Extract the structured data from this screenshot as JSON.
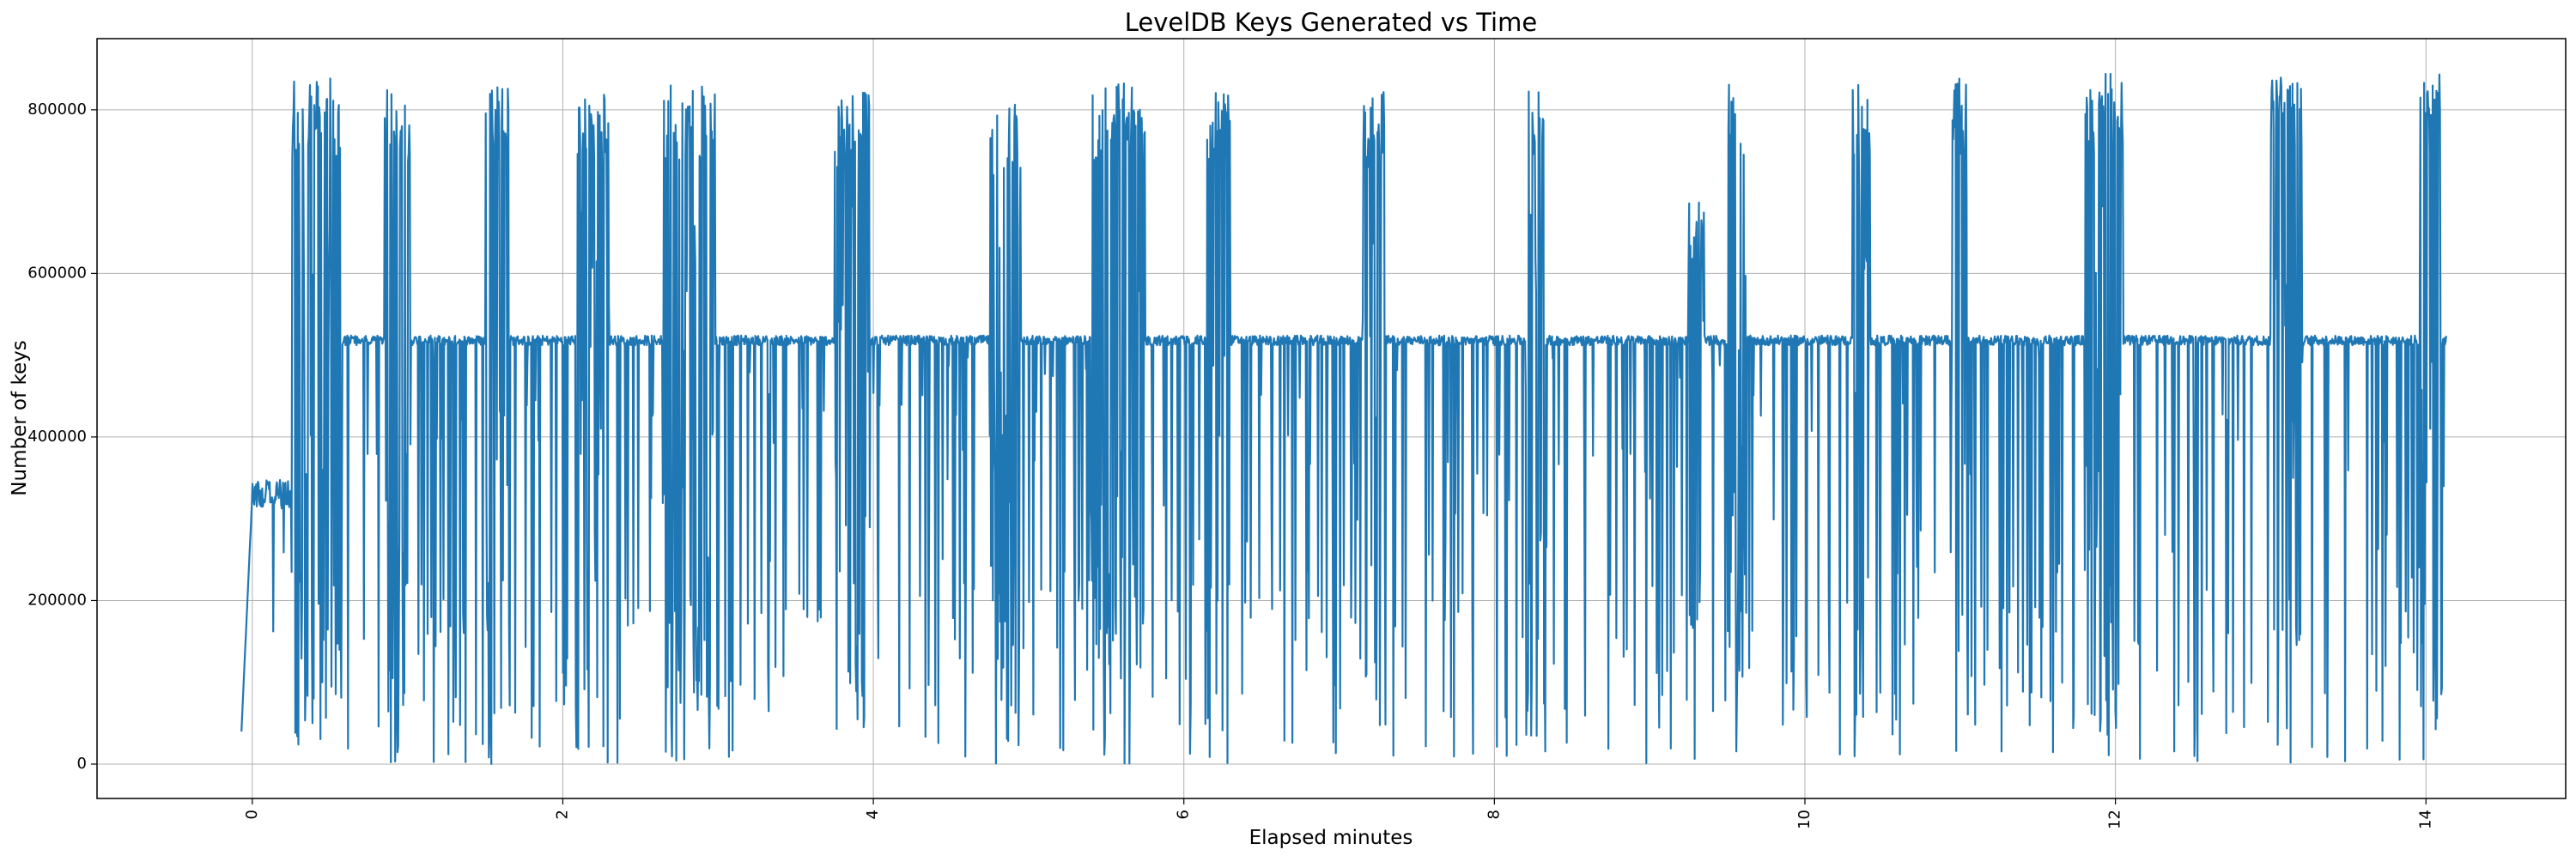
{
  "chart_data": {
    "type": "line",
    "title": "LevelDB Keys Generated vs Time",
    "xlabel": "Elapsed minutes",
    "ylabel": "Number of keys",
    "xlim": [
      -1.0,
      14.9
    ],
    "ylim": [
      -42000,
      887000
    ],
    "grid": true,
    "legend": "none",
    "x_ticks": [
      0,
      2,
      4,
      6,
      8,
      10,
      12,
      14
    ],
    "x_tick_labels": [
      "0",
      "2",
      "4",
      "6",
      "8",
      "10",
      "12",
      "14"
    ],
    "y_ticks": [
      0,
      200000,
      400000,
      600000,
      800000
    ],
    "y_tick_labels": [
      "0",
      "200000",
      "400000",
      "600000",
      "800000"
    ],
    "series": [
      {
        "name": "keys",
        "color": "#1f77b4",
        "x_start": -0.07,
        "x_end": 14.13,
        "baseline": 518000,
        "early_plateau": {
          "x_start": 0.0,
          "x_end": 0.38,
          "level": 330000
        },
        "bursts": [
          {
            "x_start": 0.25,
            "x_end": 0.58,
            "peak": 840000
          },
          {
            "x_start": 0.85,
            "x_end": 1.02,
            "peak": 825000
          },
          {
            "x_start": 1.5,
            "x_end": 1.65,
            "peak": 830000
          },
          {
            "x_start": 2.08,
            "x_end": 2.3,
            "peak": 825000
          },
          {
            "x_start": 2.65,
            "x_end": 2.98,
            "peak": 830000
          },
          {
            "x_start": 3.75,
            "x_end": 3.98,
            "peak": 830000
          },
          {
            "x_start": 4.75,
            "x_end": 4.95,
            "peak": 815000
          },
          {
            "x_start": 5.4,
            "x_end": 5.75,
            "peak": 838000
          },
          {
            "x_start": 6.15,
            "x_end": 6.3,
            "peak": 835000
          },
          {
            "x_start": 7.15,
            "x_end": 7.3,
            "peak": 828000
          },
          {
            "x_start": 8.2,
            "x_end": 8.32,
            "peak": 835000
          },
          {
            "x_start": 9.25,
            "x_end": 9.35,
            "peak": 700000
          },
          {
            "x_start": 9.5,
            "x_end": 9.62,
            "peak": 835000
          },
          {
            "x_start": 10.3,
            "x_end": 10.42,
            "peak": 838000
          },
          {
            "x_start": 10.95,
            "x_end": 11.05,
            "peak": 842000
          },
          {
            "x_start": 11.8,
            "x_end": 12.05,
            "peak": 845000
          },
          {
            "x_start": 13.0,
            "x_end": 13.2,
            "peak": 845000
          },
          {
            "x_start": 13.95,
            "x_end": 14.1,
            "peak": 845000
          }
        ],
        "min": 0,
        "max": 845000
      }
    ]
  }
}
